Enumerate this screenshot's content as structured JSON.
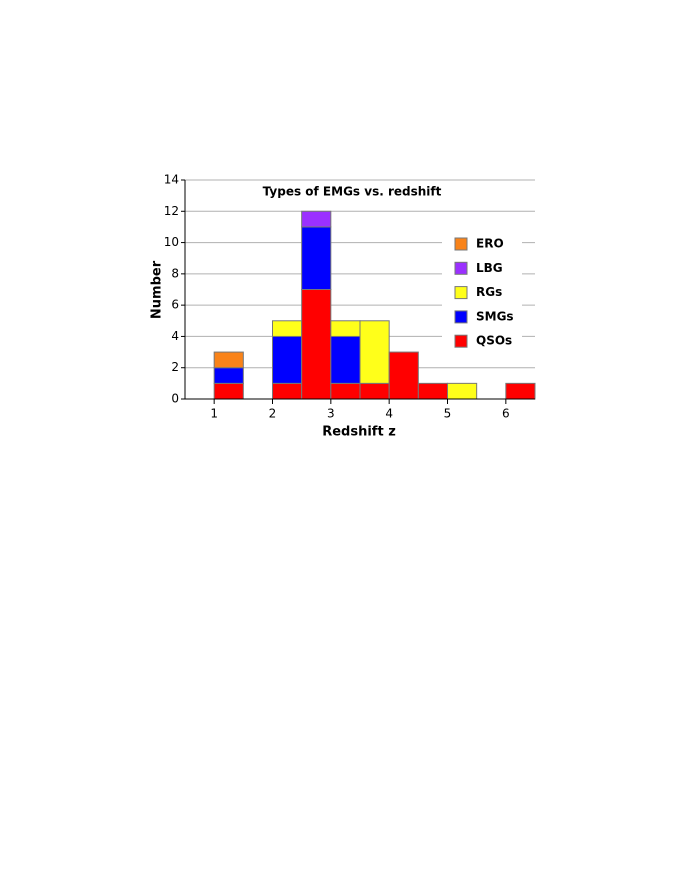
{
  "chart_data": {
    "type": "stacked_histogram",
    "title": "Types of EMGs vs. redshift",
    "x_label": "Redshift z",
    "y_label": "Number",
    "bins": [
      0.5,
      1.0,
      1.5,
      2.0,
      2.5,
      3.0,
      3.5,
      4.0,
      4.5,
      5.0,
      5.5,
      6.0,
      6.5
    ],
    "series": [
      {
        "name": "ERO",
        "color": "#f98319",
        "values": [
          0,
          1,
          0,
          0,
          0,
          0,
          0,
          0,
          0,
          0,
          0,
          0
        ]
      },
      {
        "name": "LBG",
        "color": "#9b30ff",
        "values": [
          0,
          0,
          0,
          0,
          1,
          0,
          0,
          0,
          0,
          0,
          0,
          0
        ]
      },
      {
        "name": "RGs",
        "color": "#ffff1a",
        "values": [
          0,
          0,
          0,
          1,
          0,
          1,
          4,
          0,
          0,
          1,
          0,
          0
        ]
      },
      {
        "name": "SMGs",
        "color": "#0000ff",
        "values": [
          0,
          1,
          0,
          3,
          4,
          3,
          0,
          0,
          0,
          0,
          0,
          0
        ]
      },
      {
        "name": "QSOs",
        "color": "#ff0000",
        "values": [
          0,
          1,
          0,
          1,
          7,
          1,
          1,
          3,
          1,
          0,
          0,
          1
        ]
      }
    ],
    "xlim": [
      0.5,
      6.5
    ],
    "xticks": [
      1,
      2,
      3,
      4,
      5,
      6
    ],
    "ylim": [
      0,
      14
    ],
    "yticks": [
      0,
      2,
      4,
      6,
      8,
      10,
      12,
      14
    ],
    "grid": true
  }
}
